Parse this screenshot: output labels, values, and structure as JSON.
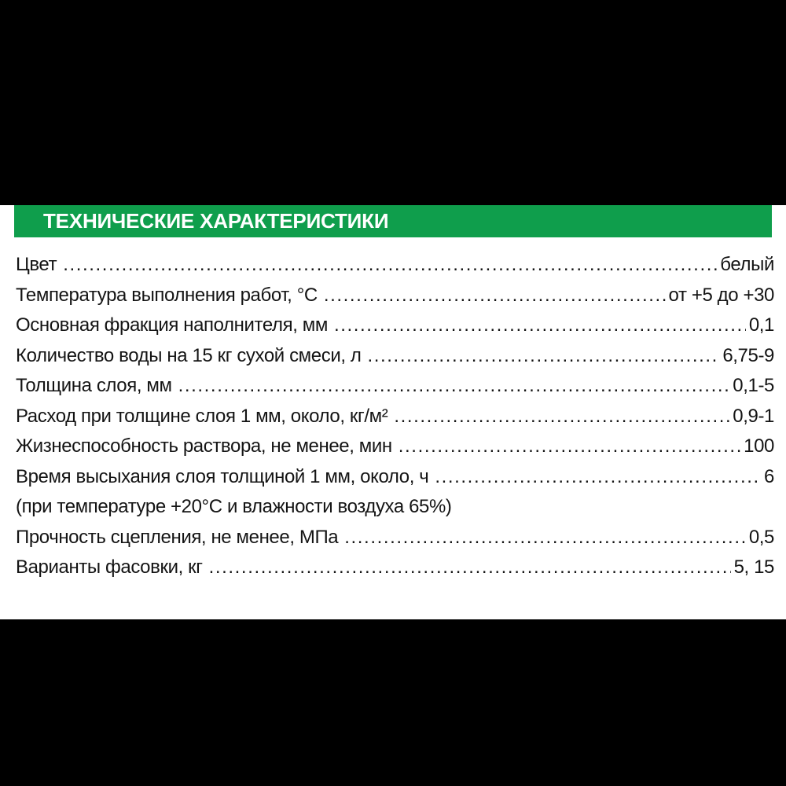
{
  "page": {
    "background_color": "#000000",
    "content_background_color": "#ffffff",
    "text_color": "#141414"
  },
  "header": {
    "title": "ТЕХНИЧЕСКИЕ ХАРАКТЕРИСТИКИ",
    "background_color": "#0f9e4c",
    "text_color": "#ffffff"
  },
  "specs": {
    "rows": [
      {
        "label": "Цвет",
        "value": "белый"
      },
      {
        "label": "Температура выполнения работ, °С",
        "value": "от +5 до +30"
      },
      {
        "label": "Основная фракция наполнителя, мм",
        "value": "0,1"
      },
      {
        "label": "Количество воды на 15 кг сухой смеси, л",
        "value": "6,75-9"
      },
      {
        "label": "Толщина слоя, мм",
        "value": "0,1-5"
      },
      {
        "label": "Расход при толщине слоя 1 мм, около, кг/м²",
        "value": "0,9-1"
      },
      {
        "label": "Жизнеспособность раствора, не менее, мин",
        "value": "100"
      },
      {
        "label": "Время высыхания слоя толщиной 1 мм, около, ч",
        "value": "6"
      },
      {
        "label": "(при температуре +20°С и влажности воздуха 65%)",
        "value": ""
      },
      {
        "label": "Прочность сцепления, не менее, МПа",
        "value": "0,5"
      },
      {
        "label": "Варианты фасовки, кг",
        "value": "5, 15"
      }
    ]
  }
}
